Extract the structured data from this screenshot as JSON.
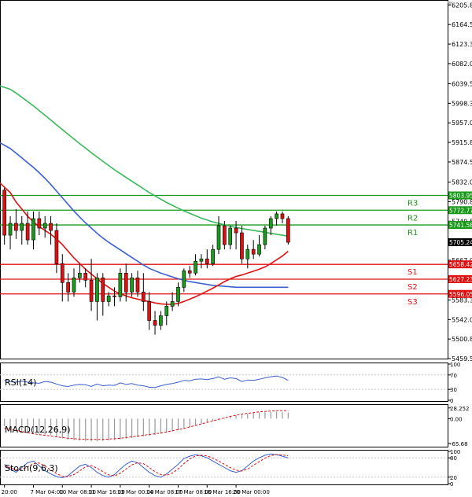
{
  "chart_data": {
    "type": "candlestick",
    "main": {
      "price_axis_ticks": [
        6205.8,
        6164.55,
        6123.3,
        6082.05,
        6039.55,
        5998.3,
        5957.05,
        5915.8,
        5874.55,
        5832.05,
        5790.8,
        5749.55,
        5708.3,
        5667.05,
        5624.55,
        5583.3,
        5542.05,
        5500.8,
        5459.55
      ],
      "ylim": [
        5459.55,
        6213
      ],
      "levels": [
        {
          "name": "R3",
          "value": 5803.95,
          "label": "5803.95",
          "color": "#1a9a1a"
        },
        {
          "name": "R2",
          "value": 5772.77,
          "label": "5772.77",
          "color": "#1a9a1a"
        },
        {
          "name": "R1",
          "value": 5741.58,
          "label": "5741.58",
          "color": "#1a9a1a"
        },
        {
          "name": "S1",
          "value": 5658.42,
          "label": "5658.42",
          "color": "#e01010"
        },
        {
          "name": "S2",
          "value": 5627.23,
          "label": "5627.23",
          "color": "#e01010"
        },
        {
          "name": "S3",
          "value": 5596.05,
          "label": "5596.05",
          "color": "#e01010"
        }
      ],
      "current_price": {
        "value": 5705.24,
        "label": "5705.24"
      },
      "ohlc": [
        [
          5815,
          5820,
          5700,
          5720
        ],
        [
          5720,
          5760,
          5690,
          5745
        ],
        [
          5745,
          5775,
          5712,
          5730
        ],
        [
          5730,
          5760,
          5700,
          5745
        ],
        [
          5745,
          5770,
          5700,
          5710
        ],
        [
          5710,
          5770,
          5690,
          5755
        ],
        [
          5755,
          5770,
          5720,
          5735
        ],
        [
          5735,
          5760,
          5715,
          5745
        ],
        [
          5745,
          5760,
          5700,
          5730
        ],
        [
          5730,
          5745,
          5640,
          5660
        ],
        [
          5660,
          5680,
          5580,
          5620
        ],
        [
          5620,
          5640,
          5580,
          5600
        ],
        [
          5600,
          5650,
          5590,
          5630
        ],
        [
          5630,
          5660,
          5620,
          5640
        ],
        [
          5640,
          5650,
          5610,
          5625
        ],
        [
          5625,
          5670,
          5560,
          5580
        ],
        [
          5580,
          5640,
          5540,
          5630
        ],
        [
          5630,
          5640,
          5550,
          5580
        ],
        [
          5580,
          5600,
          5570,
          5592
        ],
        [
          5592,
          5610,
          5570,
          5590
        ],
        [
          5590,
          5650,
          5580,
          5640
        ],
        [
          5640,
          5660,
          5580,
          5600
        ],
        [
          5600,
          5640,
          5590,
          5630
        ],
        [
          5630,
          5645,
          5590,
          5600
        ],
        [
          5600,
          5640,
          5560,
          5580
        ],
        [
          5580,
          5600,
          5520,
          5540
        ],
        [
          5540,
          5560,
          5510,
          5530
        ],
        [
          5530,
          5560,
          5520,
          5550
        ],
        [
          5550,
          5580,
          5530,
          5570
        ],
        [
          5570,
          5600,
          5560,
          5580
        ],
        [
          5580,
          5620,
          5570,
          5610
        ],
        [
          5610,
          5650,
          5600,
          5645
        ],
        [
          5645,
          5655,
          5630,
          5640
        ],
        [
          5640,
          5680,
          5635,
          5665
        ],
        [
          5665,
          5680,
          5650,
          5670
        ],
        [
          5670,
          5690,
          5650,
          5660
        ],
        [
          5660,
          5700,
          5655,
          5690
        ],
        [
          5690,
          5760,
          5680,
          5740
        ],
        [
          5740,
          5750,
          5690,
          5700
        ],
        [
          5700,
          5740,
          5690,
          5735
        ],
        [
          5735,
          5750,
          5690,
          5725
        ],
        [
          5725,
          5740,
          5660,
          5670
        ],
        [
          5670,
          5700,
          5650,
          5690
        ],
        [
          5690,
          5710,
          5670,
          5680
        ],
        [
          5680,
          5720,
          5675,
          5700
        ],
        [
          5700,
          5740,
          5690,
          5735
        ],
        [
          5735,
          5760,
          5720,
          5755
        ],
        [
          5755,
          5770,
          5740,
          5765
        ],
        [
          5765,
          5770,
          5745,
          5755
        ],
        [
          5755,
          5760,
          5700,
          5705
        ]
      ],
      "ma_fast": [
        5830,
        5810,
        5790,
        5775,
        5760,
        5748,
        5738,
        5730,
        5722,
        5712,
        5700,
        5686,
        5672,
        5660,
        5648,
        5638,
        5628,
        5618,
        5610,
        5602,
        5596,
        5592,
        5588,
        5585,
        5582,
        5580,
        5577,
        5575,
        5574,
        5574,
        5576,
        5580,
        5585,
        5590,
        5596,
        5602,
        5608,
        5615,
        5622,
        5628,
        5633,
        5636,
        5640,
        5644,
        5648,
        5653,
        5660,
        5668,
        5676,
        5686
      ],
      "ma_mid": [
        5915,
        5903,
        5893,
        5883,
        5873,
        5863,
        5852,
        5840,
        5827,
        5813,
        5799,
        5785,
        5771,
        5758,
        5746,
        5735,
        5724,
        5714,
        5705,
        5697,
        5689,
        5681,
        5673,
        5665,
        5657,
        5650,
        5645,
        5640,
        5636,
        5632,
        5628,
        5625,
        5622,
        5620,
        5618,
        5616,
        5614,
        5613,
        5612,
        5611,
        5610,
        5610,
        5610,
        5610,
        5610,
        5610,
        5610,
        5610,
        5610,
        5610
      ],
      "ma_slow": [
        6035,
        6028,
        6020,
        6011,
        6002,
        5993,
        5983,
        5973,
        5963,
        5953,
        5943,
        5933,
        5923,
        5913,
        5904,
        5894,
        5885,
        5876,
        5867,
        5858,
        5850,
        5842,
        5834,
        5826,
        5818,
        5810,
        5803,
        5796,
        5789,
        5783,
        5777,
        5771,
        5766,
        5761,
        5756,
        5752,
        5748,
        5745,
        5742,
        5739,
        5736,
        5734,
        5732,
        5730,
        5728,
        5726,
        5724,
        5722,
        5720,
        5718
      ],
      "colors": {
        "up": "#1a9a1a",
        "down": "#e01010",
        "ma_fast": "#e01010",
        "ma_mid": "#3a5fd0",
        "ma_slow": "#3ab85a"
      }
    },
    "x_ticks": [
      {
        "index": 0,
        "label": "20:00"
      },
      {
        "index": 5,
        "label": "7 Mar 04:00"
      },
      {
        "index": 10,
        "label": "10 Mar 08:00"
      },
      {
        "index": 15,
        "label": "11 Mar 16:00"
      },
      {
        "index": 20,
        "label": "13 Mar 00:00"
      },
      {
        "index": 25,
        "label": "14 Mar 08:00"
      },
      {
        "index": 30,
        "label": "17 Mar 08:00"
      },
      {
        "index": 35,
        "label": "18 Mar 16:00"
      },
      {
        "index": 40,
        "label": "20 Mar 00:00"
      }
    ],
    "rsi": {
      "label": "RSI(14)",
      "ticks": [
        100,
        70,
        30,
        0
      ],
      "ylim": [
        0,
        100
      ],
      "values": [
        55,
        52,
        50,
        53,
        50,
        48,
        47,
        52,
        50,
        45,
        40,
        38,
        42,
        44,
        43,
        38,
        45,
        40,
        42,
        41,
        48,
        44,
        46,
        42,
        40,
        36,
        35,
        40,
        44,
        46,
        50,
        55,
        54,
        58,
        59,
        57,
        60,
        65,
        58,
        62,
        60,
        52,
        56,
        55,
        58,
        62,
        65,
        67,
        63,
        55
      ],
      "color": "#3a5fd0"
    },
    "macd": {
      "label": "MACD(12,26,9)",
      "ticks": [
        28.252,
        0.0,
        -65.68
      ],
      "tick_labels": [
        "28.252",
        "0.00",
        "-65.68"
      ],
      "ylim": [
        -72,
        34
      ],
      "histogram": [
        -20,
        -24,
        -28,
        -32,
        -35,
        -38,
        -40,
        -42,
        -44,
        -48,
        -52,
        -55,
        -57,
        -58,
        -59,
        -60,
        -60,
        -59,
        -58,
        -57,
        -55,
        -53,
        -51,
        -49,
        -47,
        -45,
        -43,
        -40,
        -37,
        -34,
        -30,
        -26,
        -22,
        -18,
        -14,
        -10,
        -6,
        -2,
        2,
        6,
        9,
        11,
        13,
        15,
        16,
        17,
        18,
        18,
        17,
        16
      ],
      "signal": [
        -25,
        -28,
        -31,
        -34,
        -37,
        -40,
        -42,
        -44,
        -46,
        -48,
        -50,
        -52,
        -53,
        -54,
        -55,
        -55,
        -55,
        -55,
        -54,
        -53,
        -52,
        -50,
        -48,
        -46,
        -44,
        -42,
        -40,
        -38,
        -35,
        -32,
        -29,
        -26,
        -22,
        -18,
        -14,
        -10,
        -6,
        -2,
        2,
        6,
        9,
        12,
        14,
        16,
        18,
        19,
        20,
        21,
        21,
        21
      ],
      "colors": {
        "histogram": "#9a9a9a",
        "signal": "#e01010"
      }
    },
    "stoch": {
      "label": "Stoch(9,6,3)",
      "ticks": [
        100,
        80,
        20,
        0
      ],
      "ylim": [
        0,
        100
      ],
      "k": [
        60,
        45,
        35,
        50,
        65,
        70,
        55,
        40,
        30,
        22,
        18,
        25,
        40,
        55,
        60,
        50,
        35,
        25,
        20,
        28,
        45,
        60,
        70,
        65,
        50,
        35,
        25,
        20,
        30,
        45,
        60,
        78,
        85,
        90,
        86,
        80,
        70,
        60,
        50,
        40,
        35,
        40,
        55,
        70,
        80,
        88,
        92,
        90,
        85,
        80
      ],
      "d": [
        55,
        50,
        42,
        44,
        52,
        62,
        64,
        55,
        42,
        31,
        23,
        22,
        28,
        40,
        52,
        56,
        48,
        37,
        27,
        24,
        32,
        45,
        58,
        65,
        62,
        50,
        37,
        28,
        26,
        33,
        46,
        62,
        76,
        86,
        88,
        86,
        79,
        70,
        60,
        50,
        42,
        39,
        45,
        57,
        68,
        79,
        87,
        90,
        89,
        86
      ],
      "colors": {
        "k": "#3a5fd0",
        "d": "#e01010"
      }
    }
  }
}
